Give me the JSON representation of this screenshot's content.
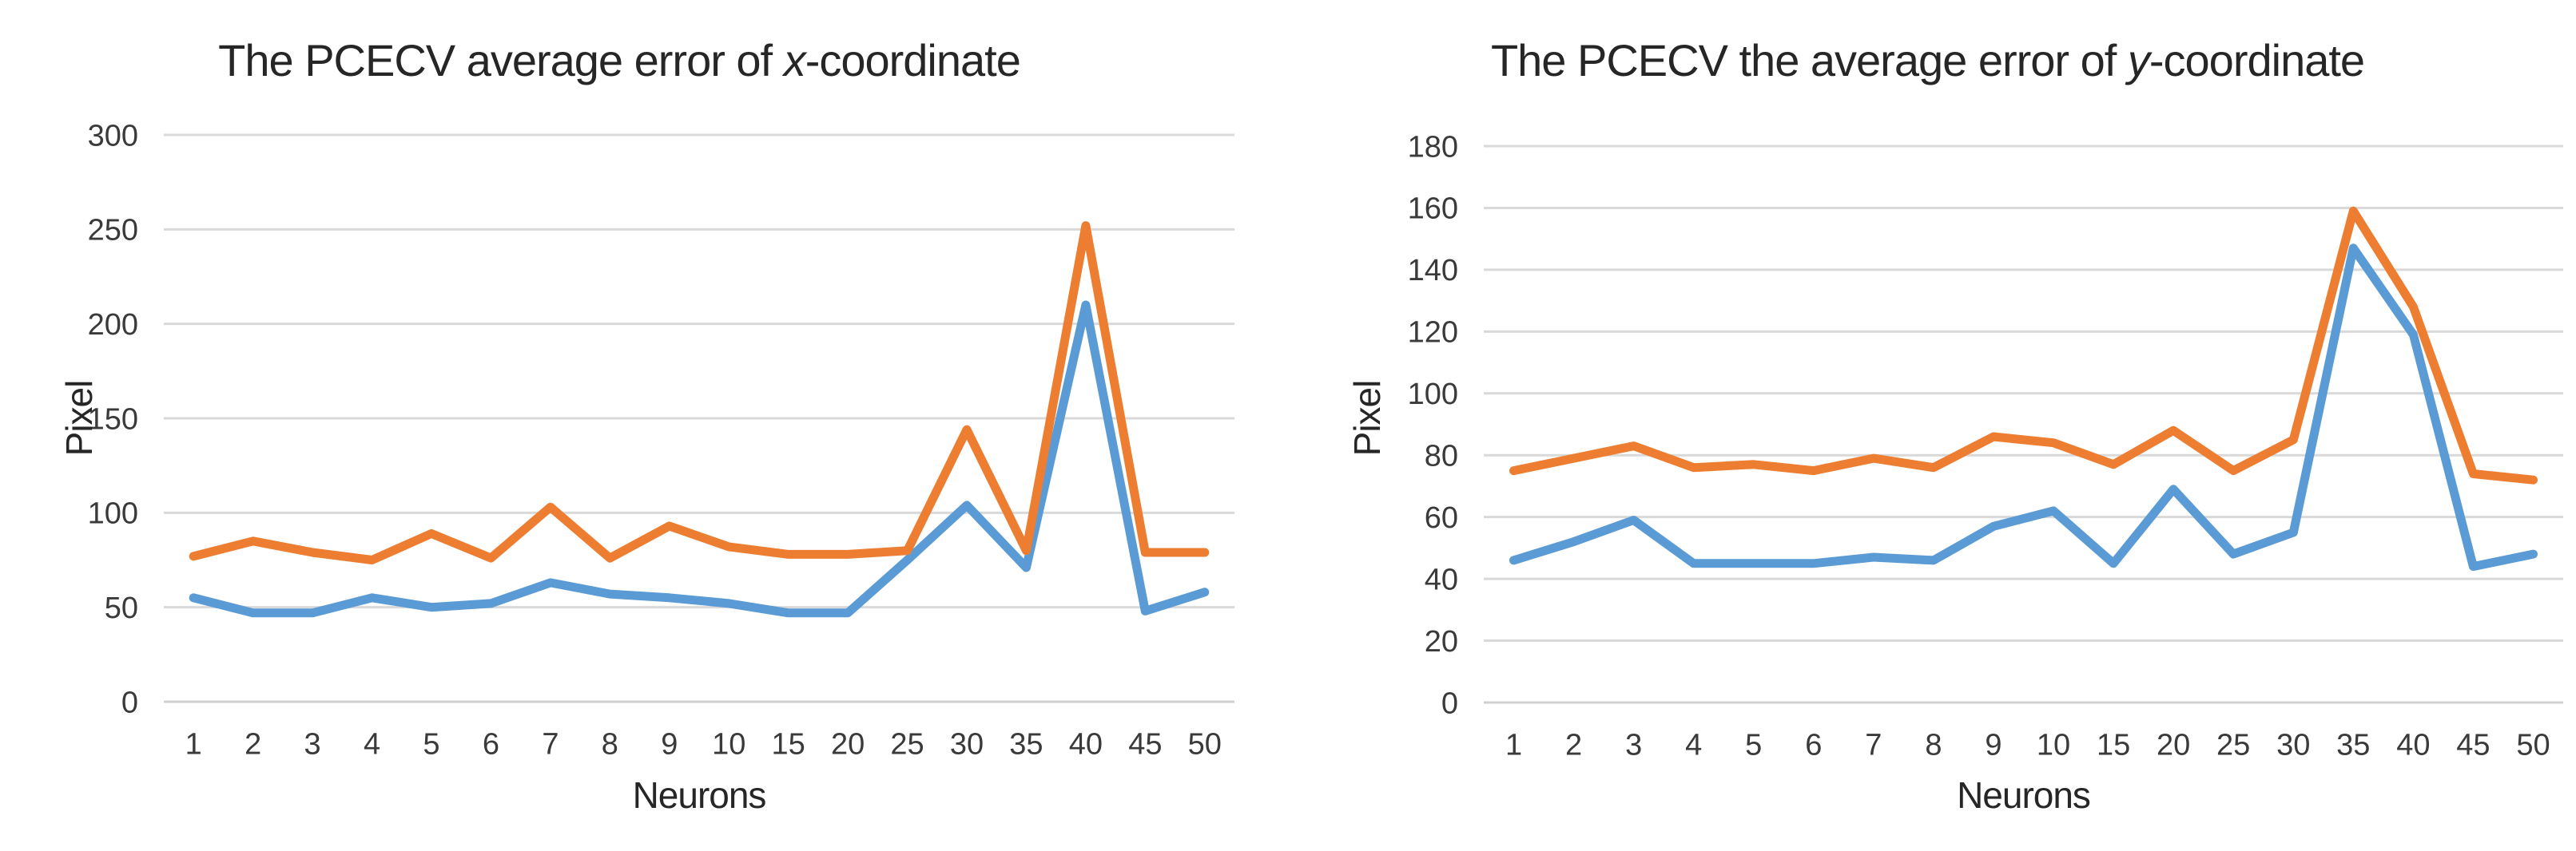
{
  "figure": {
    "background": "#FFFFFF",
    "gridline_color": "#D9D9D9",
    "axisline_color": "#D0D0D0",
    "tick_text_color": "#3A3A3A",
    "title_text_color": "#262626"
  },
  "chart_data": [
    {
      "type": "line",
      "title": "The PCECV average error of x-coordinate",
      "title_parts": {
        "prefix": "The PCECV average error of ",
        "italic": "x",
        "suffix": "-coordinate"
      },
      "xlabel": "Neurons",
      "ylabel": "Pixel",
      "categories": [
        "1",
        "2",
        "3",
        "4",
        "5",
        "6",
        "7",
        "8",
        "9",
        "10",
        "15",
        "20",
        "25",
        "30",
        "35",
        "40",
        "45",
        "50"
      ],
      "ylim": [
        0,
        300
      ],
      "ytick_step": 50,
      "yticks": [
        0,
        50,
        100,
        150,
        200,
        250,
        300
      ],
      "grid": true,
      "legend": null,
      "series": [
        {
          "name": "series-1-blue",
          "color": "#5B9BD5",
          "values": [
            55,
            47,
            47,
            55,
            50,
            52,
            63,
            57,
            55,
            52,
            47,
            47,
            75,
            104,
            71,
            210,
            48,
            58
          ]
        },
        {
          "name": "series-2-orange",
          "color": "#ED7D31",
          "values": [
            77,
            85,
            79,
            75,
            89,
            76,
            103,
            76,
            93,
            82,
            78,
            78,
            80,
            144,
            80,
            252,
            79,
            79
          ]
        }
      ]
    },
    {
      "type": "line",
      "title": "The PCECV the average error of y-coordinate",
      "title_parts": {
        "prefix": "The PCECV the average error of ",
        "italic": "y",
        "suffix": "-coordinate"
      },
      "xlabel": "Neurons",
      "ylabel": "Pixel",
      "categories": [
        "1",
        "2",
        "3",
        "4",
        "5",
        "6",
        "7",
        "8",
        "9",
        "10",
        "15",
        "20",
        "25",
        "30",
        "35",
        "40",
        "45",
        "50"
      ],
      "ylim": [
        0,
        180
      ],
      "ytick_step": 20,
      "yticks": [
        0,
        20,
        40,
        60,
        80,
        100,
        120,
        140,
        160,
        180
      ],
      "grid": true,
      "legend": null,
      "series": [
        {
          "name": "series-1-blue",
          "color": "#5B9BD5",
          "values": [
            46,
            52,
            59,
            45,
            45,
            45,
            47,
            46,
            57,
            62,
            45,
            69,
            48,
            55,
            147,
            119,
            44,
            48
          ]
        },
        {
          "name": "series-2-orange",
          "color": "#ED7D31",
          "values": [
            75,
            79,
            83,
            76,
            77,
            75,
            79,
            76,
            86,
            84,
            77,
            88,
            75,
            85,
            159,
            128,
            74,
            72
          ]
        }
      ]
    }
  ]
}
